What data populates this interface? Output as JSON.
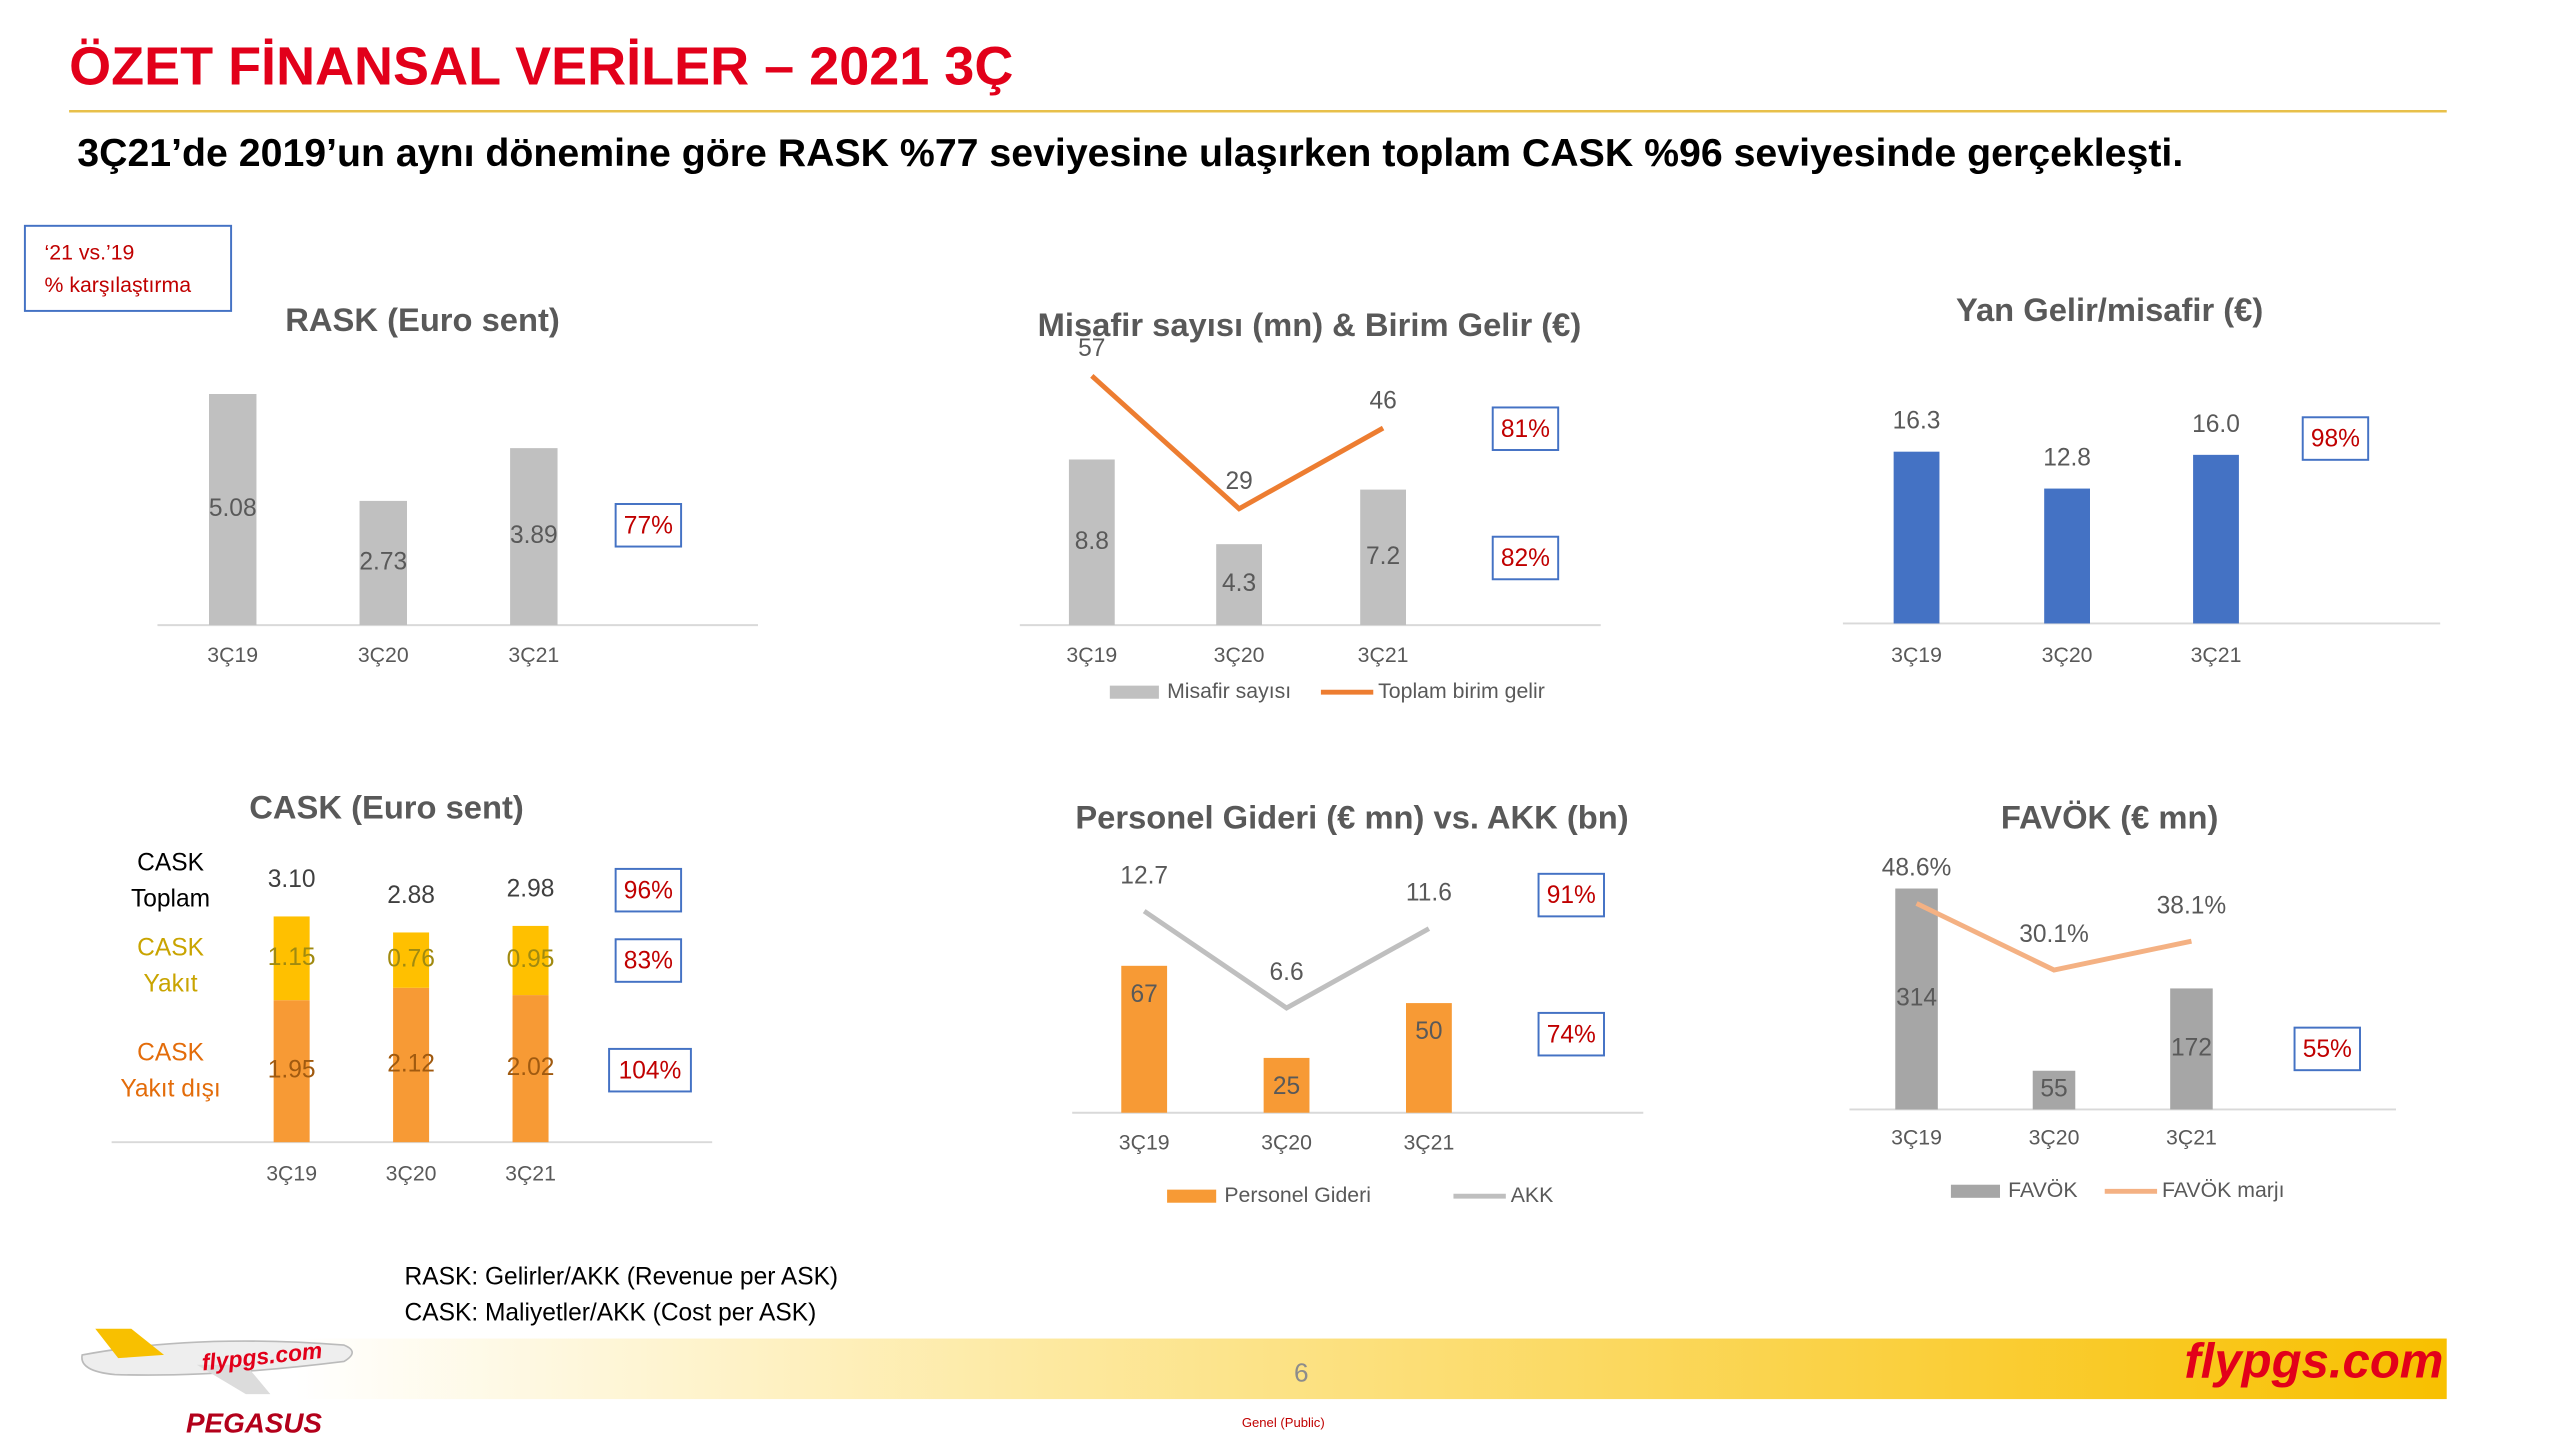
{
  "header": {
    "title": "ÖZET FİNANSAL VERİLER – 2021 3Ç",
    "subtitle": "3Ç21’de 2019’un aynı dönemine göre RASK %77 seviyesine ulaşırken toplam CASK %96 seviyesinde gerçekleşti.",
    "legend_box": [
      "‘21 vs.’19",
      "% karşılaştırma"
    ]
  },
  "chart_data": [
    {
      "type": "bar",
      "title": "RASK (Euro sent)",
      "categories": [
        "3Ç19",
        "3Ç20",
        "3Ç21"
      ],
      "values": [
        5.08,
        2.73,
        3.89
      ],
      "color": "#c0c0c0",
      "comparisons": [
        "77%"
      ]
    },
    {
      "type": "combo",
      "title": "Misafir sayısı (mn) & Birim Gelir (€)",
      "categories": [
        "3Ç19",
        "3Ç20",
        "3Ç21"
      ],
      "series": [
        {
          "name": "Misafir sayısı",
          "color": "#c0c0c0",
          "values": [
            8.8,
            4.3,
            7.2
          ]
        },
        {
          "name": "Toplam birim gelir",
          "color": "#ed7d31",
          "axis": "y2",
          "values": [
            57,
            29,
            46
          ]
        }
      ],
      "comparisons": [
        "81%",
        "82%"
      ]
    },
    {
      "type": "bar",
      "title": "Yan Gelir/misafir (€)",
      "categories": [
        "3Ç19",
        "3Ç20",
        "3Ç21"
      ],
      "values": [
        16.3,
        12.8,
        16.0
      ],
      "value_labels": [
        "16.3",
        "12.8",
        "16.0"
      ],
      "color": "#4472c4",
      "comparisons": [
        "98%"
      ]
    },
    {
      "type": "stacked_bar",
      "title": "CASK (Euro sent)",
      "categories": [
        "3Ç19",
        "3Ç20",
        "3Ç21"
      ],
      "series": [
        {
          "color": "#f79a35",
          "values": [
            1.95,
            2.12,
            2.02
          ]
        },
        {
          "color": "#ffc000",
          "values": [
            1.15,
            0.76,
            0.95
          ]
        }
      ],
      "totals": [
        3.1,
        2.88,
        2.98
      ],
      "total_labels": [
        "3.10",
        "2.88",
        "2.98"
      ],
      "row_labels": [
        [
          "CASK",
          "Toplam"
        ],
        [
          "CASK",
          "Yakıt"
        ],
        [
          "CASK",
          "Yakıt dışı"
        ]
      ],
      "comparisons": [
        "96%",
        "83%",
        "104%"
      ]
    },
    {
      "type": "combo",
      "title": "Personel Gideri (€ mn) vs. AKK (bn)",
      "categories": [
        "3Ç19",
        "3Ç20",
        "3Ç21"
      ],
      "series": [
        {
          "name": "Personel Gideri",
          "color": "#f79a35",
          "values": [
            67,
            25,
            50
          ]
        },
        {
          "name": "AKK",
          "color": "#bfbfbf",
          "axis": "y2",
          "values": [
            12.7,
            6.6,
            11.6
          ]
        }
      ],
      "comparisons": [
        "91%",
        "74%"
      ]
    },
    {
      "type": "combo",
      "title": "FAVÖK (€ mn)",
      "categories": [
        "3Ç19",
        "3Ç20",
        "3Ç21"
      ],
      "series": [
        {
          "name": "FAVÖK",
          "color": "#a6a6a6",
          "values": [
            314,
            55,
            172
          ]
        },
        {
          "name": "FAVÖK marjı",
          "color": "#f4b183",
          "axis": "y2",
          "values": [
            48.6,
            30.1,
            38.1
          ],
          "value_labels": [
            "48.6%",
            "30.1%",
            "38.1%"
          ]
        }
      ],
      "comparisons": [
        "55%"
      ]
    }
  ],
  "footer": {
    "notes": [
      "RASK: Gelirler/AKK (Revenue per ASK)",
      "CASK: Maliyetler/AKK (Cost per ASK)"
    ],
    "page": "6",
    "classification": "Genel (Public)",
    "brand": "flypgs.com",
    "logo": "PEGASUS"
  }
}
